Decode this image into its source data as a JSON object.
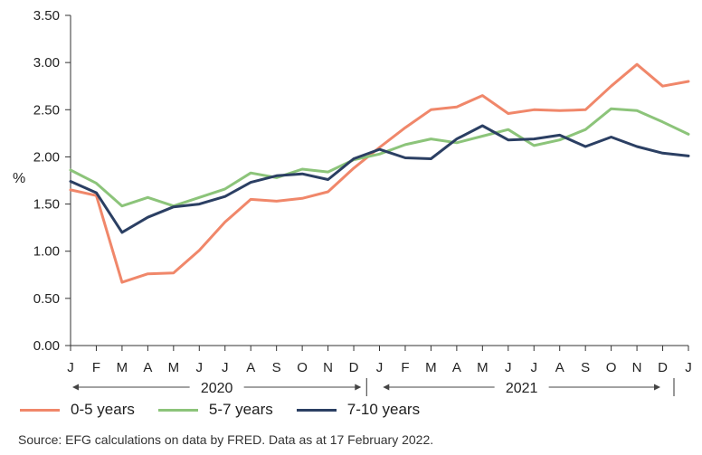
{
  "chart_data": {
    "type": "line",
    "ylabel": "%",
    "ylim": [
      0,
      3.5
    ],
    "yticks": [
      "0.00",
      "0.50",
      "1.00",
      "1.50",
      "2.00",
      "2.50",
      "3.00",
      "3.50"
    ],
    "categories": [
      "J",
      "F",
      "M",
      "A",
      "M",
      "J",
      "J",
      "A",
      "S",
      "O",
      "N",
      "D",
      "J",
      "F",
      "M",
      "A",
      "M",
      "J",
      "J",
      "A",
      "S",
      "O",
      "N",
      "D",
      "J"
    ],
    "year_labels": [
      "2020",
      "2021"
    ],
    "series": [
      {
        "name": "0-5 years",
        "color": "#f0876a",
        "values": [
          1.65,
          1.59,
          0.67,
          0.76,
          0.77,
          1.01,
          1.31,
          1.55,
          1.53,
          1.56,
          1.63,
          1.88,
          2.1,
          2.31,
          2.5,
          2.53,
          2.65,
          2.46,
          2.5,
          2.49,
          2.5,
          2.75,
          2.98,
          2.75,
          2.8
        ]
      },
      {
        "name": "5-7 years",
        "color": "#8cc47a",
        "values": [
          1.86,
          1.72,
          1.48,
          1.57,
          1.48,
          1.57,
          1.66,
          1.83,
          1.78,
          1.87,
          1.84,
          1.97,
          2.03,
          2.13,
          2.19,
          2.15,
          2.22,
          2.29,
          2.12,
          2.18,
          2.29,
          2.51,
          2.49,
          2.37,
          2.24
        ]
      },
      {
        "name": "7-10 years",
        "color": "#2b3f63",
        "values": [
          1.74,
          1.62,
          1.2,
          1.36,
          1.47,
          1.5,
          1.58,
          1.73,
          1.8,
          1.82,
          1.76,
          1.98,
          2.08,
          1.99,
          1.98,
          2.19,
          2.33,
          2.18,
          2.19,
          2.23,
          2.11,
          2.21,
          2.11,
          2.04,
          2.01
        ]
      }
    ],
    "grid": false,
    "legend_position": "bottom-left",
    "source": "Source: EFG calculations on data by FRED. Data as at 17 February 2022."
  }
}
